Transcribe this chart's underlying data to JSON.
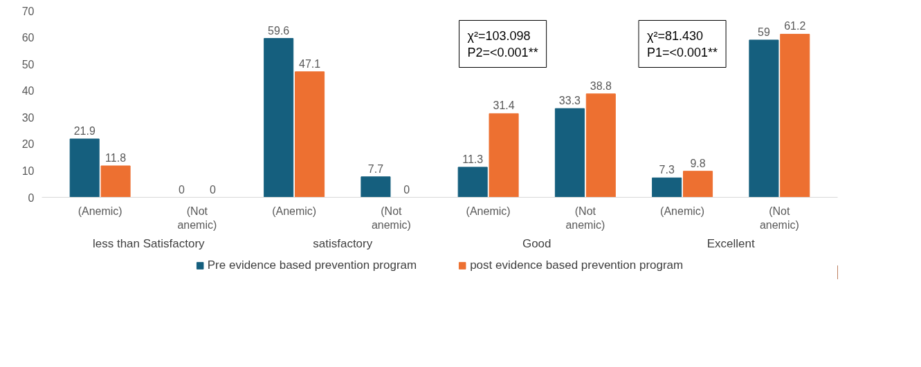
{
  "chart_data": {
    "type": "bar",
    "categories": [
      "(Anemic)",
      "(Not anemic)",
      "(Anemic)",
      "(Not anemic)",
      "(Anemic)",
      "(Not anemic)",
      "(Anemic)",
      "(Not anemic)"
    ],
    "series": [
      {
        "name": "Pre evidence based prevention program",
        "color": "#155f7e",
        "values": [
          21.9,
          0,
          59.6,
          7.7,
          11.3,
          33.3,
          7.3,
          59
        ]
      },
      {
        "name": "post evidence based prevention program",
        "color": "#ed7031",
        "values": [
          11.8,
          0,
          47.1,
          0,
          31.4,
          38.8,
          9.8,
          61.2
        ]
      }
    ],
    "ylim": [
      0,
      70
    ],
    "yticks": [
      0,
      10,
      20,
      30,
      40,
      50,
      60,
      70
    ],
    "data_labels": true,
    "grid": false,
    "legend": "bottom",
    "annotations": [
      "less than Satisfactory",
      "satisfactory",
      "Good",
      "Excellent",
      "χ²=103.098\nP2=<0.001**",
      "χ²=81.430\nP1=<0.001**"
    ]
  }
}
